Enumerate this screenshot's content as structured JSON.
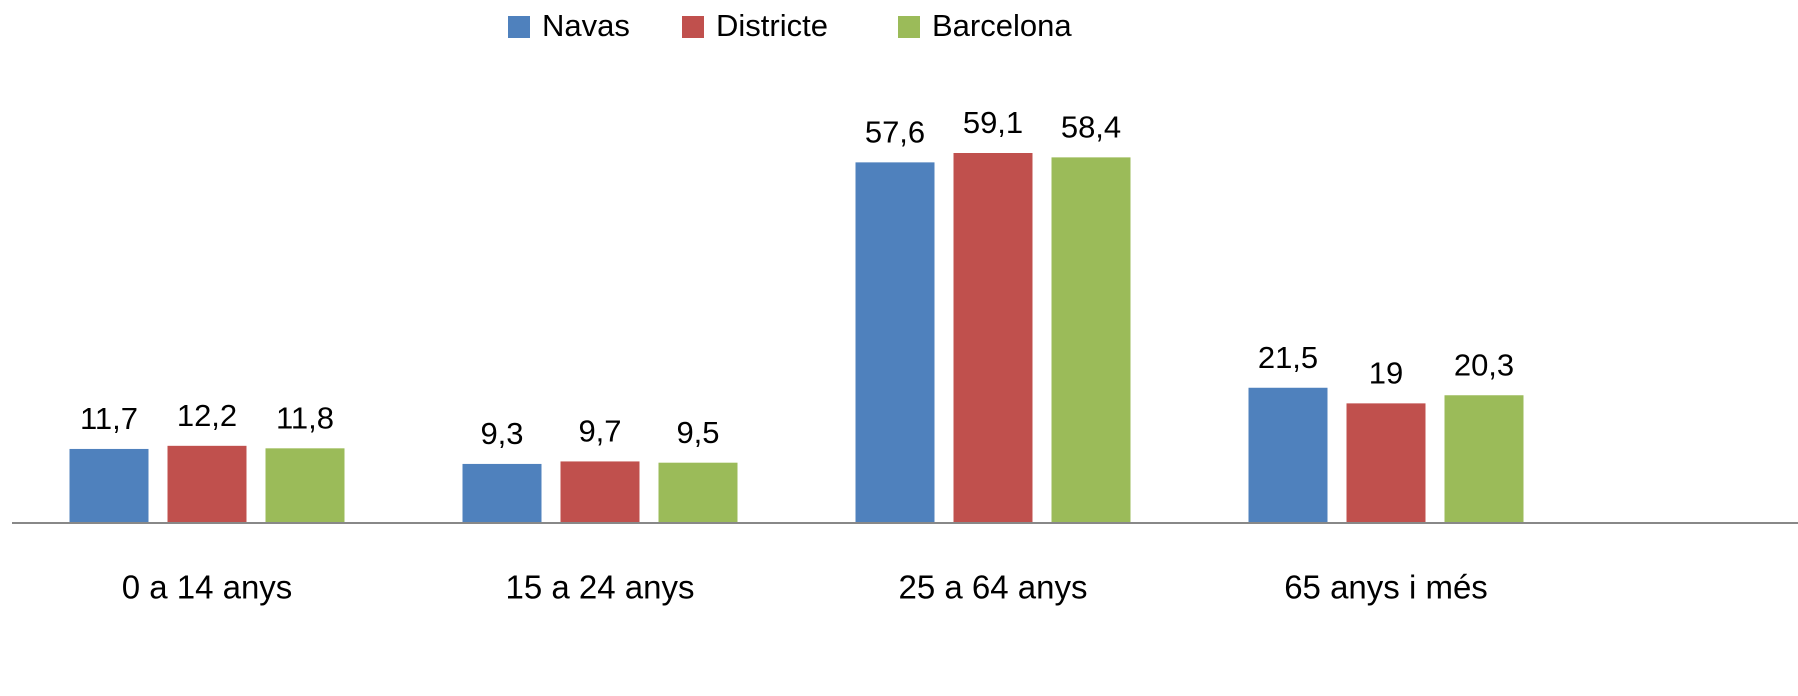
{
  "chart_data": {
    "type": "bar",
    "categories": [
      "0 a 14 anys",
      "15 a 24 anys",
      "25 a 64 anys",
      "65 anys i més"
    ],
    "series": [
      {
        "name": "Navas",
        "color": "#4f81bd",
        "values": [
          11.7,
          9.3,
          57.6,
          21.5
        ],
        "value_labels": [
          "11,7",
          "9,3",
          "57,6",
          "21,5"
        ]
      },
      {
        "name": "Districte",
        "color": "#c0504d",
        "values": [
          12.2,
          9.7,
          59.1,
          19
        ],
        "value_labels": [
          "12,2",
          "9,7",
          "59,1",
          "19"
        ]
      },
      {
        "name": "Barcelona",
        "color": "#9bbb59",
        "values": [
          11.8,
          9.5,
          58.4,
          20.3
        ],
        "value_labels": [
          "11,8",
          "9,5",
          "58,4",
          "20,3"
        ]
      }
    ],
    "legend": "top"
  }
}
